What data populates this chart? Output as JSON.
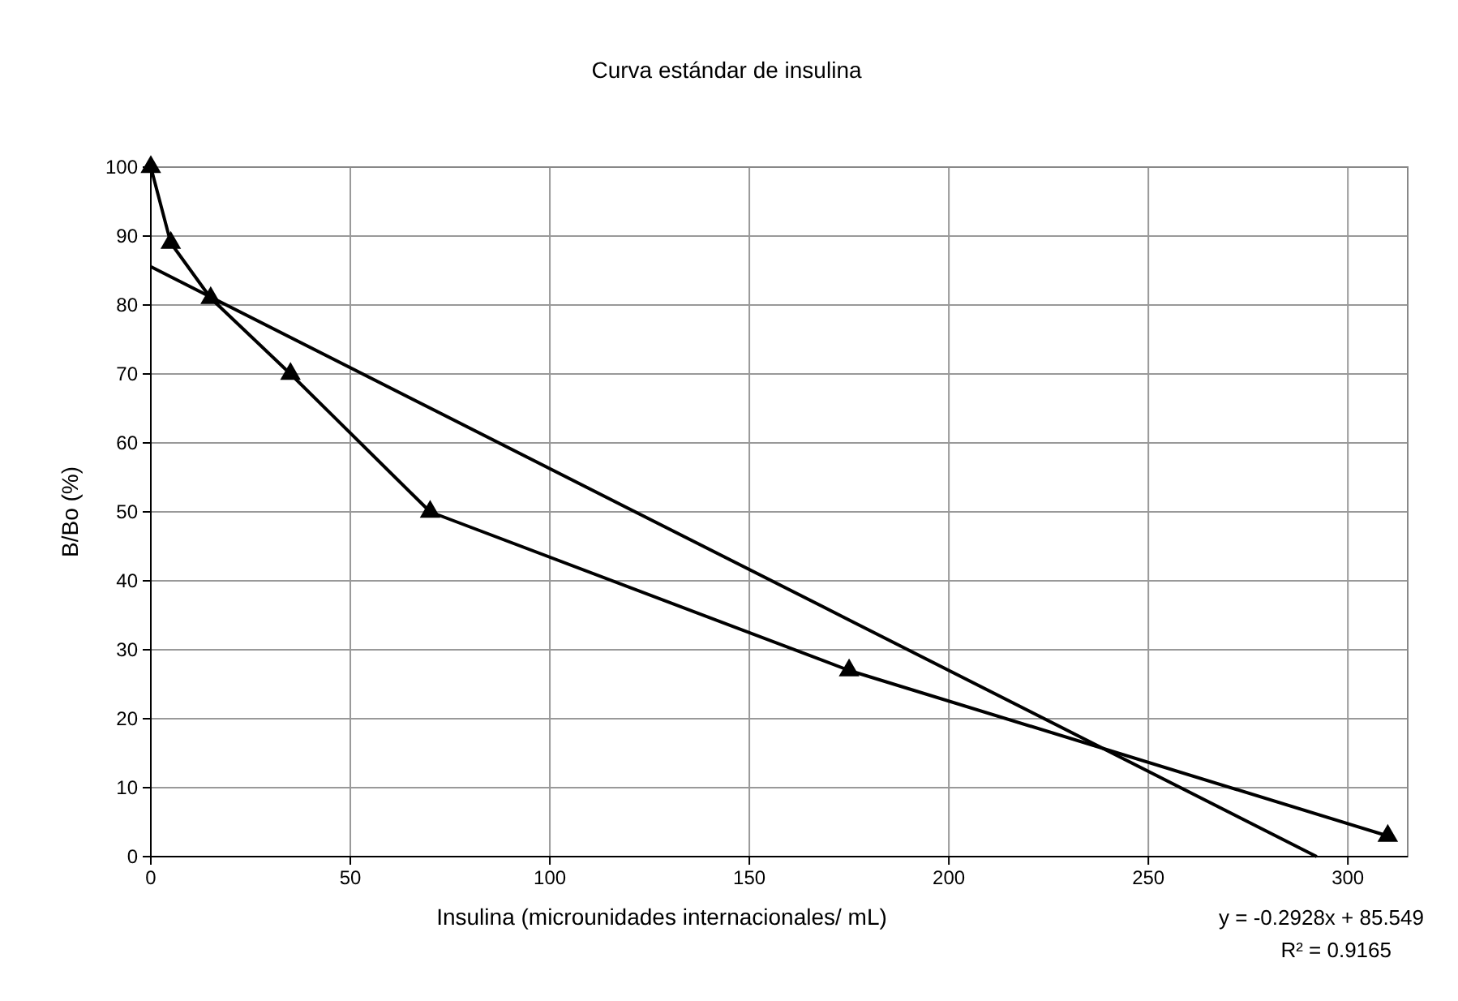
{
  "chart_data": {
    "type": "line",
    "title": "Curva estándar de insulina",
    "xlabel": "Insulina (microunidades internacionales/ mL)",
    "ylabel": "B/Bo (%)",
    "xlim": [
      0,
      315
    ],
    "xticks": [
      0,
      50,
      100,
      150,
      200,
      250,
      300
    ],
    "ylim": [
      0,
      100
    ],
    "yticks": [
      0,
      10,
      20,
      30,
      40,
      50,
      60,
      70,
      80,
      90,
      100
    ],
    "grid": true,
    "series": [
      {
        "color": "#000000",
        "x": [
          0,
          5,
          15,
          35,
          70,
          175,
          310
        ],
        "values": [
          100,
          89,
          81,
          70,
          50,
          27,
          3
        ],
        "marker": "triangle"
      },
      {
        "color": "#000000",
        "x": [
          0,
          292.2
        ],
        "values": [
          85.549,
          0
        ],
        "marker": "none"
      }
    ],
    "annotations": [
      "y = -0.2928x + 85.549",
      "R² = 0.9165"
    ]
  }
}
